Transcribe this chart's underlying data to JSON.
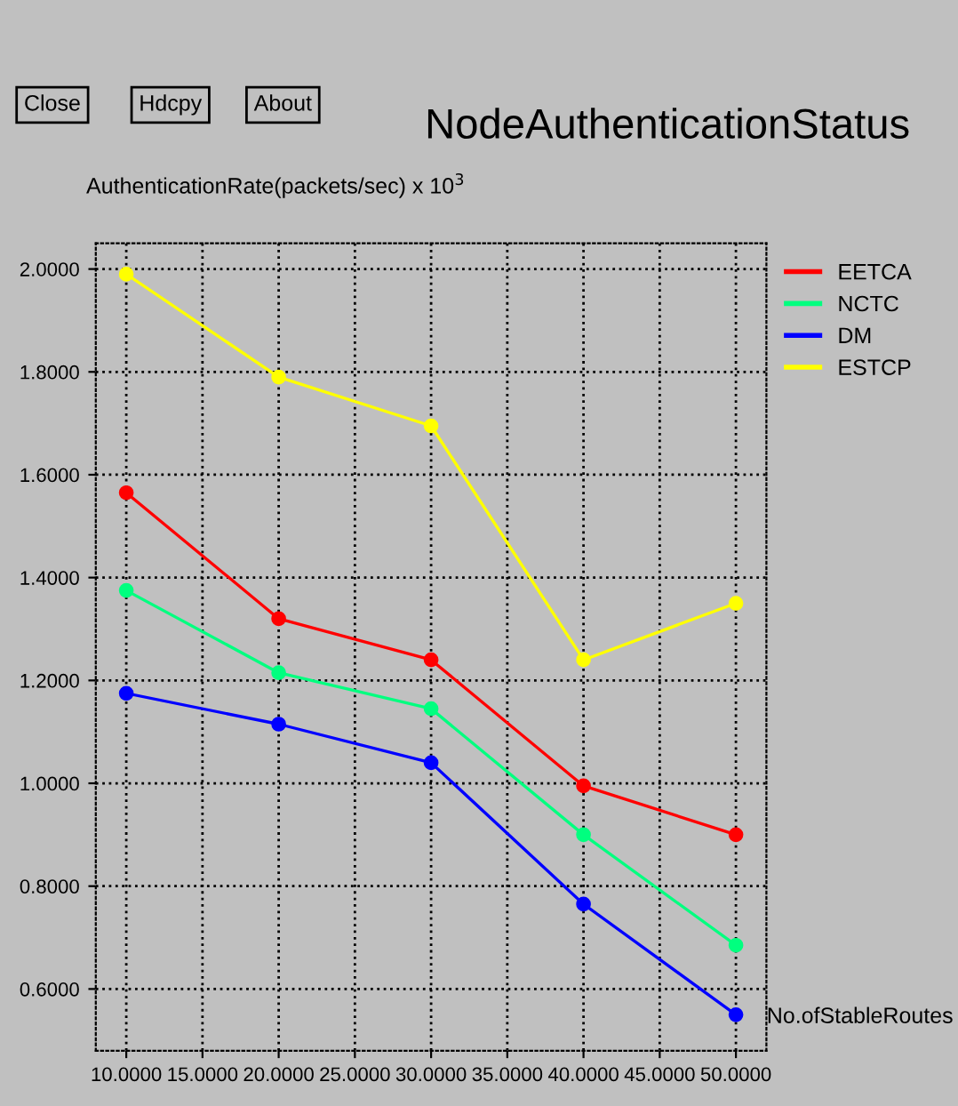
{
  "chart_data": {
    "type": "line",
    "title": "NodeAuthenticationStatus",
    "ylabel": "AuthenticationRate(packets/sec) x 10$^{3}$",
    "xlabel": "No.ofStableRoutes",
    "annotations": [
      "Close",
      "Hdcpy",
      "About"
    ],
    "x": [
      10,
      20,
      30,
      40,
      50
    ],
    "series": [
      {
        "name": "EETCA",
        "color": "#ff0000",
        "values": [
          1.565,
          1.32,
          1.24,
          0.995,
          0.9
        ]
      },
      {
        "name": "NCTC",
        "color": "#00ff7f",
        "values": [
          1.375,
          1.215,
          1.145,
          0.9,
          0.685
        ]
      },
      {
        "name": "DM",
        "color": "#0000ff",
        "values": [
          1.175,
          1.115,
          1.04,
          0.765,
          0.55
        ]
      },
      {
        "name": "ESTCP",
        "color": "#ffff00",
        "values": [
          1.99,
          1.79,
          1.695,
          1.24,
          1.35
        ]
      }
    ],
    "xlim": [
      8,
      52
    ],
    "ylim": [
      0.48,
      2.05
    ],
    "xticks": [
      {
        "value": 10,
        "label": "10.0000"
      },
      {
        "value": 15,
        "label": "15.0000"
      },
      {
        "value": 20,
        "label": "20.0000"
      },
      {
        "value": 25,
        "label": "25.0000"
      },
      {
        "value": 30,
        "label": "30.0000"
      },
      {
        "value": 35,
        "label": "35.0000"
      },
      {
        "value": 40,
        "label": "40.0000"
      },
      {
        "value": 45,
        "label": "45.0000"
      },
      {
        "value": 50,
        "label": "50.0000"
      }
    ],
    "yticks": [
      {
        "value": 0.6,
        "label": "0.6000"
      },
      {
        "value": 0.8,
        "label": "0.8000"
      },
      {
        "value": 1.0,
        "label": "1.0000"
      },
      {
        "value": 1.2,
        "label": "1.2000"
      },
      {
        "value": 1.4,
        "label": "1.4000"
      },
      {
        "value": 1.6,
        "label": "1.6000"
      },
      {
        "value": 1.8,
        "label": "1.8000"
      },
      {
        "value": 2.0,
        "label": "2.0000"
      }
    ],
    "grid": true,
    "legend": "right",
    "marker": "circle",
    "line_style": "solid"
  }
}
